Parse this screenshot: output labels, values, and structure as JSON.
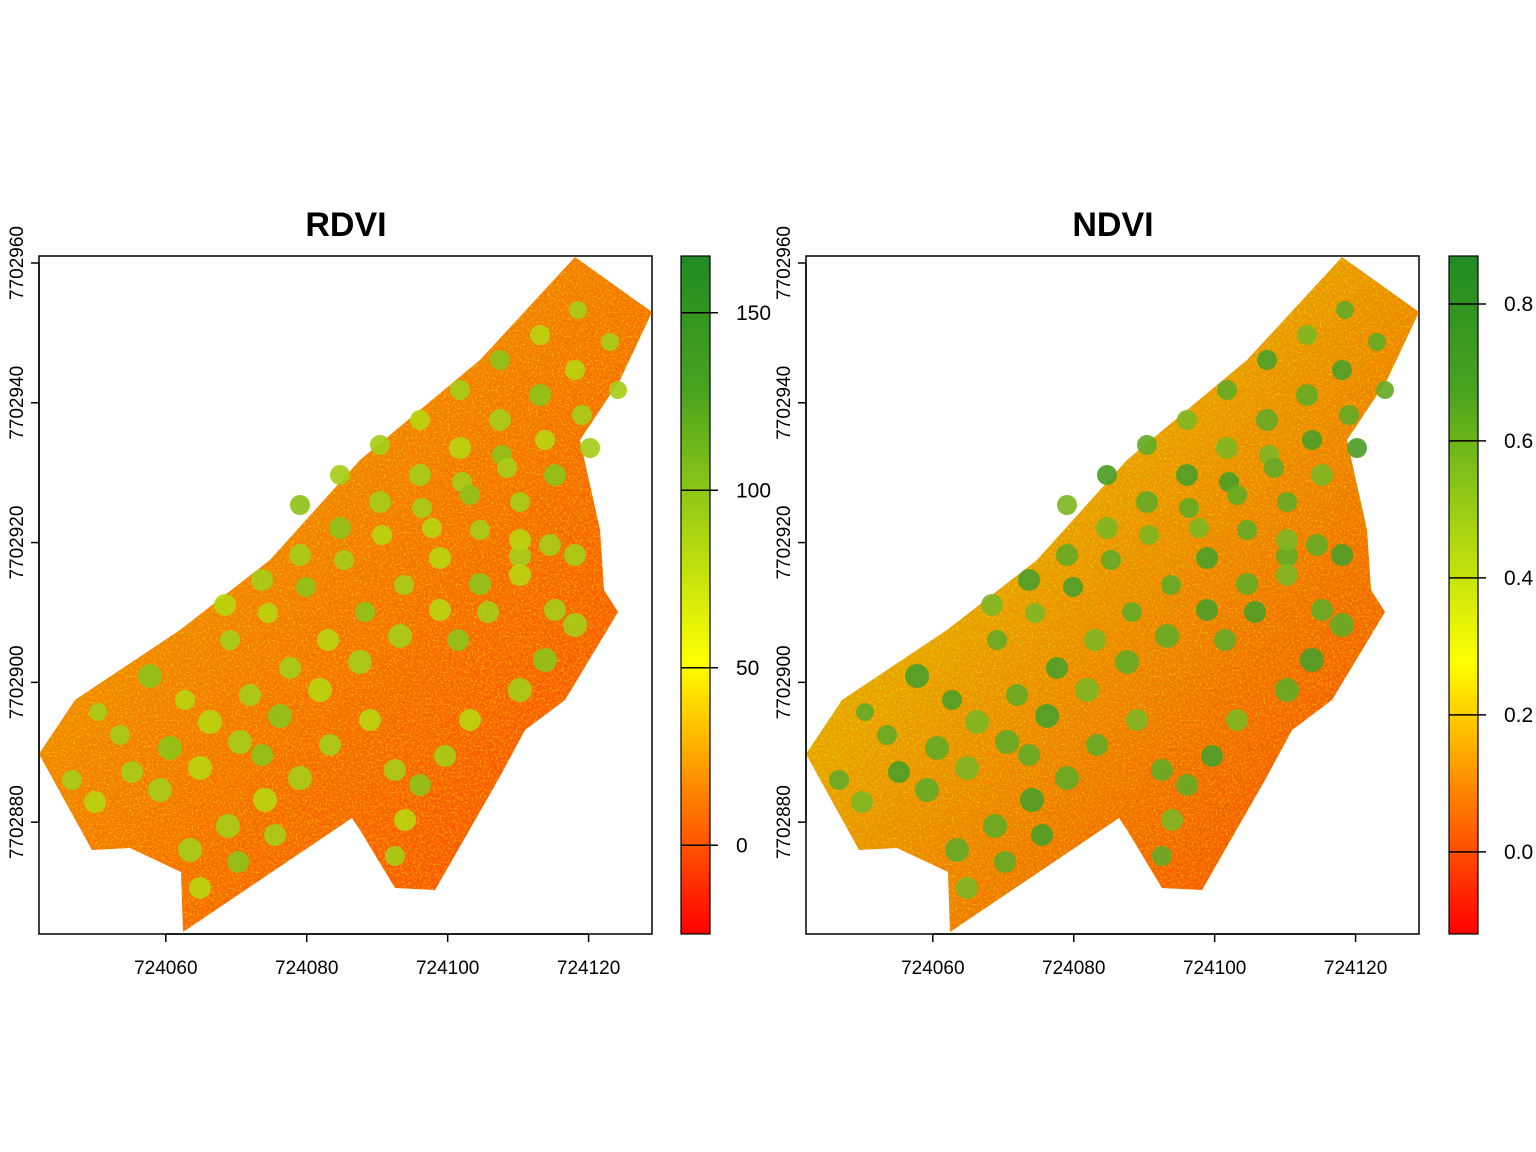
{
  "panels": [
    {
      "title": "RDVI",
      "x_ticks": [
        724060,
        724080,
        724100,
        724120
      ],
      "y_ticks": [
        7702880,
        7702900,
        7702920,
        7702940,
        7702960
      ],
      "legend": {
        "range": [
          -25,
          166
        ],
        "ticks": [
          {
            "value": 0,
            "label": "0"
          },
          {
            "value": 50,
            "label": "50"
          },
          {
            "value": 100,
            "label": "100"
          },
          {
            "value": 150,
            "label": "150"
          }
        ]
      }
    },
    {
      "title": "NDVI",
      "x_ticks": [
        724060,
        724080,
        724100,
        724120
      ],
      "y_ticks": [
        7702880,
        7702900,
        7702920,
        7702940,
        7702960
      ],
      "legend": {
        "range": [
          -0.12,
          0.87
        ],
        "ticks": [
          {
            "value": 0,
            "label": "0.0"
          },
          {
            "value": 0.2,
            "label": "0.2"
          },
          {
            "value": 0.4,
            "label": "0.4"
          },
          {
            "value": 0.6,
            "label": "0.6"
          },
          {
            "value": 0.8,
            "label": "0.8"
          }
        ]
      }
    }
  ],
  "map_extent": {
    "x": [
      724042,
      724129
    ],
    "y": [
      7702864,
      7702961
    ]
  },
  "colors": {
    "ramp": [
      "#ff0000",
      "#ff7f00",
      "#ffff00",
      "#a6d312",
      "#4aa31f",
      "#228b22"
    ],
    "axis": "#000000",
    "background": "#ffffff"
  }
}
